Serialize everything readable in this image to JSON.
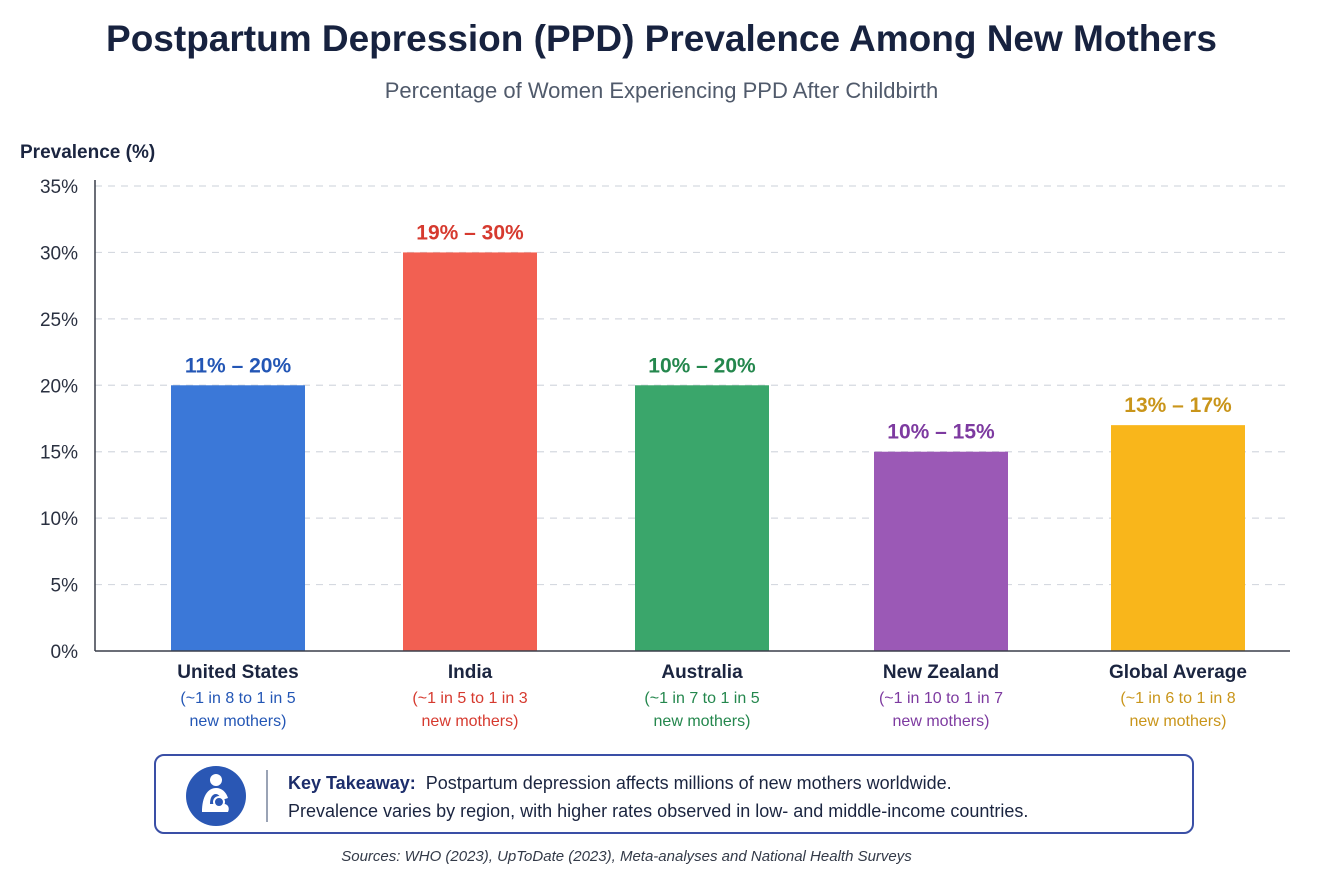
{
  "chart_data": {
    "type": "bar",
    "title": "Postpartum Depression (PPD) Prevalence Among New Mothers",
    "subtitle": "Percentage of Women Experiencing PPD After Childbirth",
    "ylabel": "Prevalence (%)",
    "xlabel": "",
    "ylim": [
      0,
      35
    ],
    "y_ticks": [
      {
        "value": 0,
        "label": "0%"
      },
      {
        "value": 5,
        "label": "5%"
      },
      {
        "value": 10,
        "label": "10%"
      },
      {
        "value": 15,
        "label": "15%"
      },
      {
        "value": 20,
        "label": "20%"
      },
      {
        "value": 25,
        "label": "25%"
      },
      {
        "value": 30,
        "label": "30%"
      },
      {
        "value": 35,
        "label": "35%"
      }
    ],
    "grid": true,
    "categories": [
      "United States",
      "India",
      "Australia",
      "New Zealand",
      "Global Average"
    ],
    "values": [
      20,
      30,
      20,
      15,
      17
    ],
    "value_labels": [
      "11% – 20%",
      "19% – 30%",
      "10% – 20%",
      "10% – 15%",
      "13% – 17%"
    ],
    "notes_line1": [
      "(~1 in 8 to 1 in 5",
      "(~1 in 5 to 1 in 3",
      "(~1 in 7 to 1 in 5",
      "(~1 in 10 to 1 in 7",
      "(~1 in 6 to 1 in 8"
    ],
    "notes_line2": [
      "new mothers)",
      "new mothers)",
      "new mothers)",
      "new mothers)",
      "new mothers)"
    ],
    "colors": [
      "#3b78d8",
      "#f26052",
      "#3aa66b",
      "#9b59b6",
      "#f9b61b"
    ],
    "label_colors": [
      "#2356b5",
      "#d63a2f",
      "#24874d",
      "#7d3aa0",
      "#c9951a"
    ]
  },
  "callout": {
    "heading": "Key Takeaway:",
    "line1": "Postpartum depression affects millions of new mothers worldwide.",
    "line2": "Prevalence varies by region, with higher rates observed in low- and middle-income countries.",
    "icon": "mother-baby-icon"
  },
  "sources": "Sources: WHO (2023), UpToDate (2023), Meta-analyses and National Health Surveys"
}
